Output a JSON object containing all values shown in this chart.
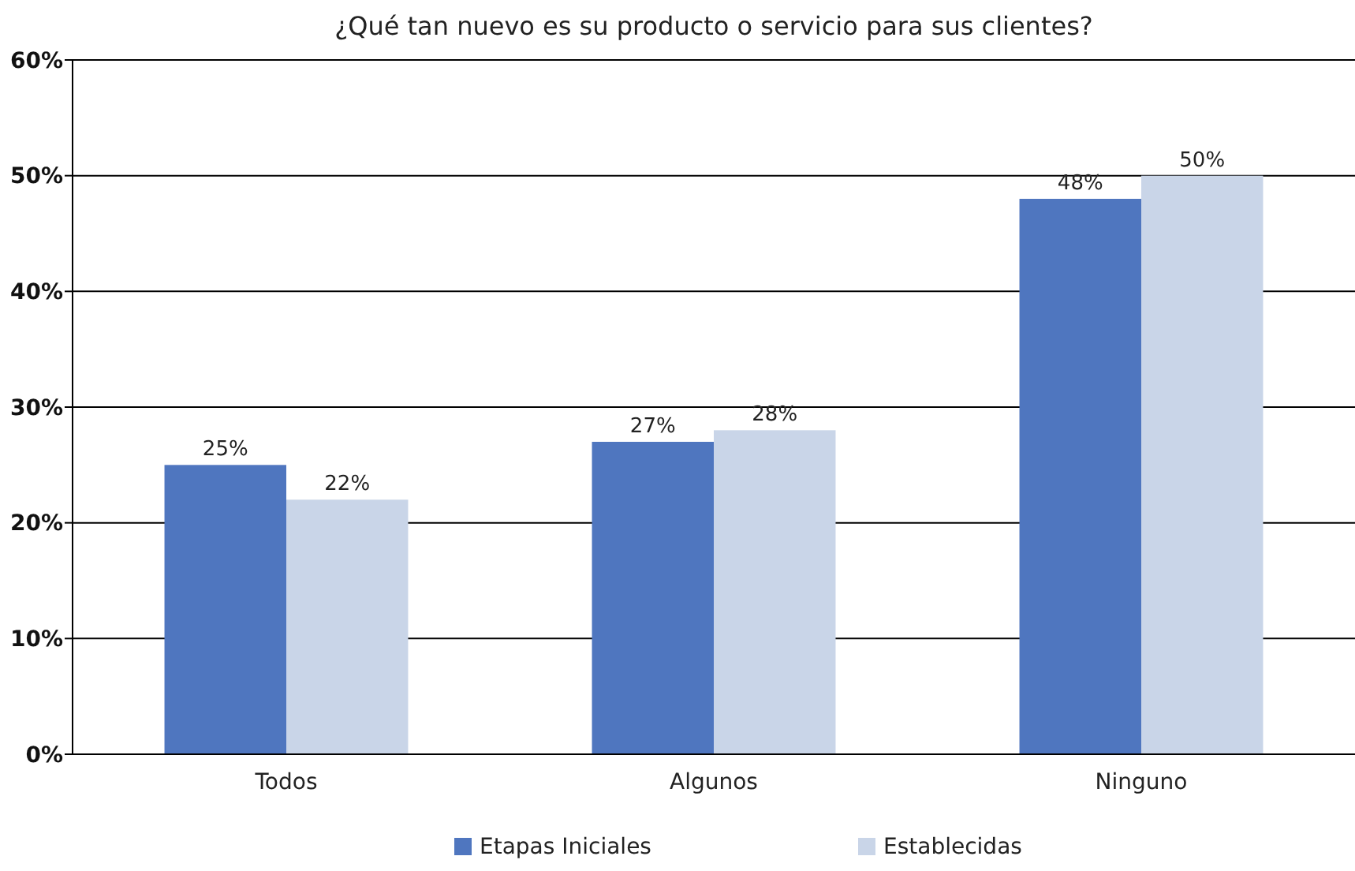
{
  "chart_data": {
    "type": "bar",
    "title": "¿Qué tan nuevo es su producto o servicio para sus clientes?",
    "categories": [
      "Todos",
      "Algunos",
      "Ninguno"
    ],
    "series": [
      {
        "name": "Etapas Iniciales",
        "color": "#4f76bf",
        "values": [
          25,
          27,
          48
        ],
        "value_labels": [
          "25%",
          "27%",
          "48%"
        ]
      },
      {
        "name": "Establecidas",
        "color": "#c9d5e8",
        "values": [
          22,
          28,
          50
        ],
        "value_labels": [
          "22%",
          "28%",
          "50%"
        ]
      }
    ],
    "ylim": [
      0,
      60
    ],
    "yticks": [
      {
        "value": 0,
        "label": "0%"
      },
      {
        "value": 10,
        "label": "10%"
      },
      {
        "value": 20,
        "label": "20%"
      },
      {
        "value": 30,
        "label": "30%"
      },
      {
        "value": 40,
        "label": "40%"
      },
      {
        "value": 50,
        "label": "50%"
      },
      {
        "value": 60,
        "label": "60%"
      }
    ],
    "grid": "y",
    "legend": "bottom"
  }
}
